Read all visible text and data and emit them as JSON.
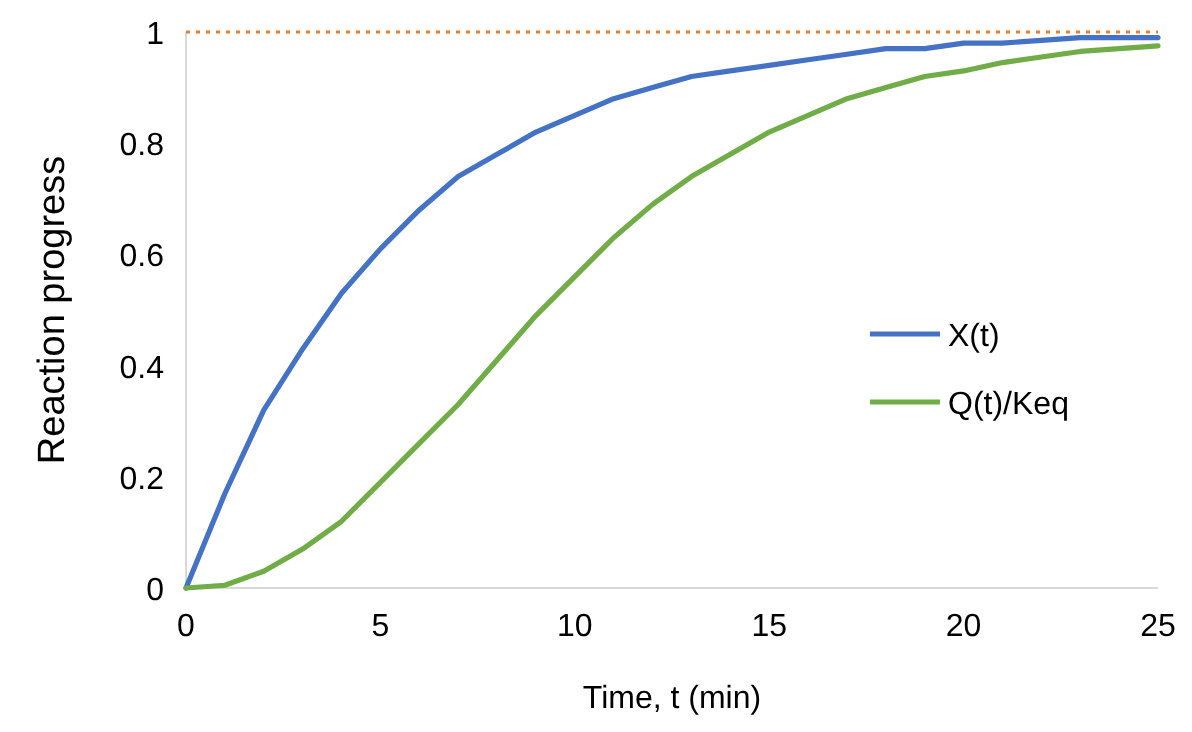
{
  "chart_data": {
    "type": "line",
    "xlabel": "Time, t (min)",
    "ylabel": "Reaction progress",
    "x": [
      0,
      1,
      2,
      3,
      4,
      5,
      6,
      7,
      8,
      9,
      10,
      11,
      12,
      13,
      14,
      15,
      16,
      17,
      18,
      19,
      20,
      21,
      22,
      23,
      24,
      25
    ],
    "series": [
      {
        "name": "X(t)",
        "color": "#4472c4",
        "values": [
          0,
          0.17,
          0.32,
          0.43,
          0.53,
          0.61,
          0.68,
          0.74,
          0.78,
          0.82,
          0.85,
          0.88,
          0.9,
          0.92,
          0.93,
          0.94,
          0.95,
          0.96,
          0.97,
          0.97,
          0.98,
          0.98,
          0.985,
          0.99,
          0.99,
          0.99
        ]
      },
      {
        "name": "Q(t)/Keq",
        "color": "#70ad47",
        "values": [
          0,
          0.005,
          0.03,
          0.07,
          0.12,
          0.19,
          0.26,
          0.33,
          0.41,
          0.49,
          0.56,
          0.63,
          0.69,
          0.74,
          0.78,
          0.82,
          0.85,
          0.88,
          0.9,
          0.92,
          0.93,
          0.945,
          0.955,
          0.965,
          0.97,
          0.975
        ]
      }
    ],
    "xlim": [
      0,
      25
    ],
    "xticks": [
      0,
      5,
      10,
      15,
      20,
      25
    ],
    "ylim": [
      0,
      1
    ],
    "yticks": [
      0,
      0.2,
      0.4,
      0.6,
      0.8,
      1
    ],
    "ref_lines": [
      {
        "axis": "y",
        "value": 1,
        "color": "#ed7d31",
        "line_style": "dotted"
      }
    ],
    "legend": "right",
    "grid": false,
    "marker": "none",
    "line_style": "solid"
  }
}
